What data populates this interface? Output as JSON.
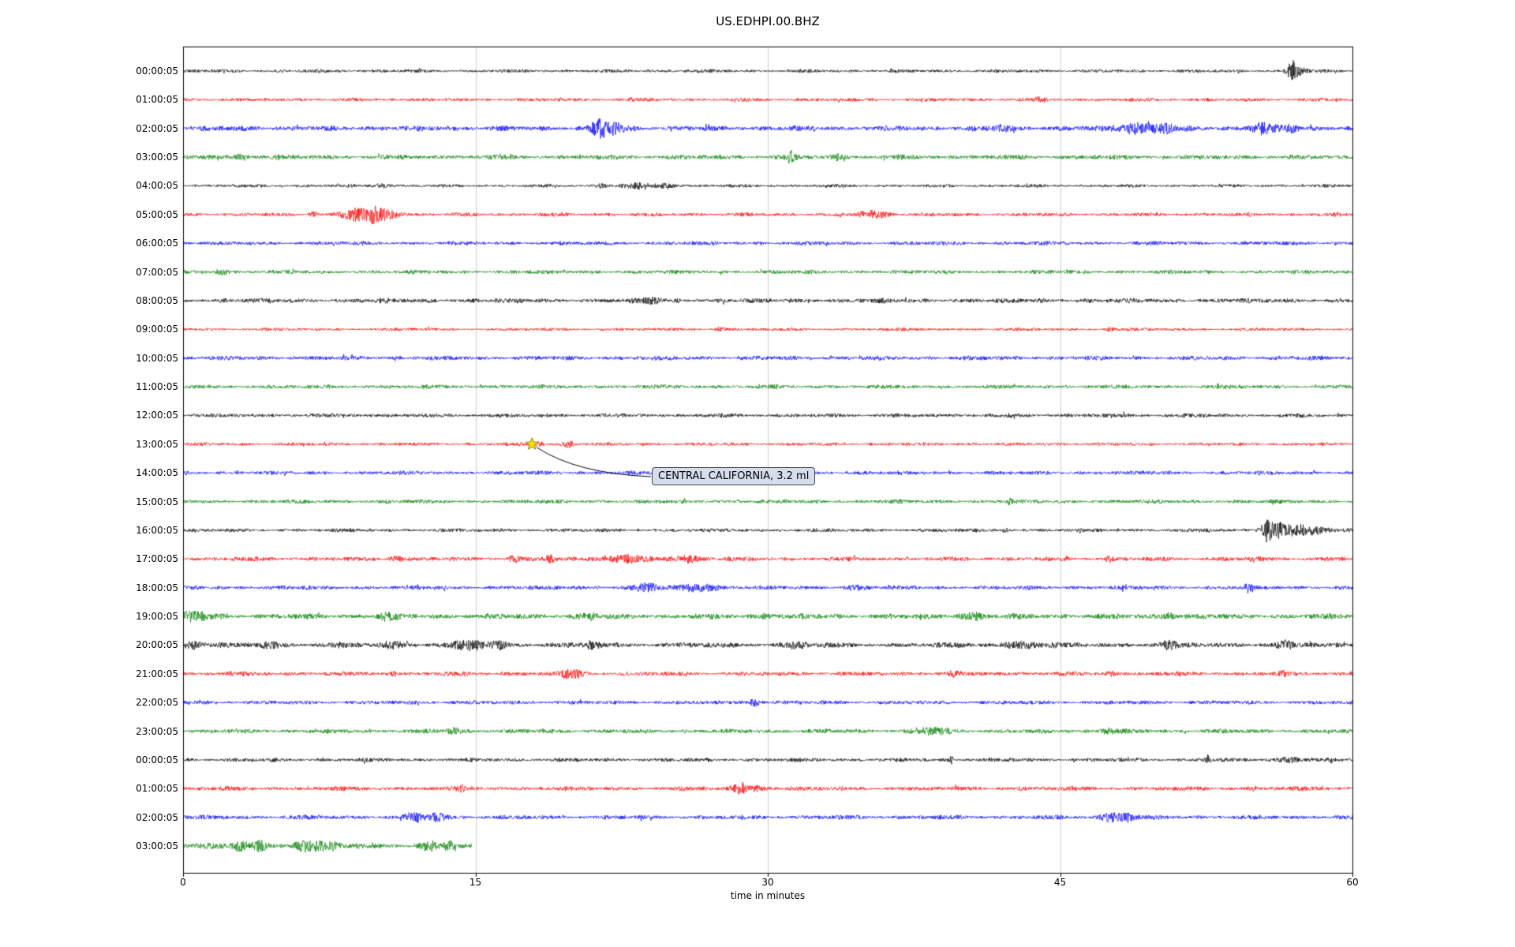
{
  "title": "US.EDHPI.00.BHZ",
  "chart_data": {
    "type": "line",
    "subtype": "seismogram-dayplot",
    "title": "US.EDHPI.00.BHZ",
    "xlabel": "time in minutes",
    "x_ticks": [
      0,
      15,
      30,
      45,
      60
    ],
    "xlim": [
      0,
      60
    ],
    "grid": true,
    "legend": "none",
    "trace_colors_cycle": [
      "#000000",
      "#ff0000",
      "#0000ff",
      "#008000"
    ],
    "annotation": {
      "text": "CENTRAL CALIFORNIA, 3.2 ml",
      "row_label": "13:00:05",
      "row_index": 13,
      "x_minutes": 17.9,
      "marker": "star",
      "marker_color": "#ffe000"
    },
    "rows": [
      {
        "label": "00:00:05",
        "color": "#000000",
        "amp": 1.6,
        "end": 60,
        "events": [
          [
            56.9,
            9,
            0.4
          ],
          [
            57.2,
            5,
            0.8
          ]
        ]
      },
      {
        "label": "01:00:05",
        "color": "#ff0000",
        "amp": 1.7,
        "end": 60,
        "events": [
          [
            44,
            2.5,
            0.6
          ]
        ]
      },
      {
        "label": "02:00:05",
        "color": "#0000ff",
        "amp": 2.6,
        "end": 60,
        "events": [
          [
            21.3,
            6,
            0.8
          ],
          [
            21.9,
            7,
            1.2
          ],
          [
            42,
            3,
            0.6
          ],
          [
            48.8,
            6,
            1.8
          ],
          [
            50.3,
            5,
            1.0
          ],
          [
            55.3,
            6,
            1.0
          ],
          [
            56.8,
            4,
            0.8
          ]
        ]
      },
      {
        "label": "03:00:05",
        "color": "#008000",
        "amp": 2.3,
        "end": 60,
        "events": [
          [
            3.0,
            3.5,
            0.8
          ],
          [
            31.2,
            6,
            0.5
          ],
          [
            33.6,
            3,
            0.5
          ]
        ]
      },
      {
        "label": "04:00:05",
        "color": "#000000",
        "amp": 1.5,
        "end": 60,
        "events": [
          [
            10.2,
            2.5,
            0.8
          ],
          [
            21.5,
            2,
            0.5
          ],
          [
            23.3,
            2.5,
            1.5
          ],
          [
            24.8,
            3,
            0.8
          ]
        ]
      },
      {
        "label": "05:00:05",
        "color": "#ff0000",
        "amp": 1.8,
        "end": 60,
        "events": [
          [
            6.7,
            3,
            0.4
          ],
          [
            8.8,
            7,
            1.2
          ],
          [
            9.8,
            9,
            0.8
          ],
          [
            10.6,
            5,
            1.0
          ],
          [
            35.2,
            5,
            0.8
          ],
          [
            36.0,
            3,
            0.8
          ]
        ]
      },
      {
        "label": "06:00:05",
        "color": "#0000ff",
        "amp": 1.9,
        "end": 60,
        "events": []
      },
      {
        "label": "07:00:05",
        "color": "#008000",
        "amp": 1.9,
        "end": 60,
        "events": [
          [
            2.0,
            3,
            0.8
          ]
        ]
      },
      {
        "label": "08:00:05",
        "color": "#000000",
        "amp": 2.3,
        "end": 60,
        "events": [
          [
            24,
            2.8,
            1.0
          ]
        ]
      },
      {
        "label": "09:00:05",
        "color": "#ff0000",
        "amp": 1.5,
        "end": 60,
        "events": [
          [
            27.6,
            2.5,
            0.4
          ],
          [
            47.6,
            2.2,
            0.4
          ]
        ]
      },
      {
        "label": "10:00:05",
        "color": "#0000ff",
        "amp": 2.1,
        "end": 60,
        "events": []
      },
      {
        "label": "11:00:05",
        "color": "#008000",
        "amp": 1.9,
        "end": 60,
        "events": []
      },
      {
        "label": "12:00:05",
        "color": "#000000",
        "amp": 1.9,
        "end": 60,
        "events": []
      },
      {
        "label": "13:00:05",
        "color": "#ff0000",
        "amp": 1.6,
        "end": 60,
        "events": [
          [
            18.3,
            2.5,
            0.4
          ],
          [
            19.7,
            4.5,
            0.5
          ]
        ]
      },
      {
        "label": "14:00:05",
        "color": "#0000ff",
        "amp": 1.9,
        "end": 60,
        "events": []
      },
      {
        "label": "15:00:05",
        "color": "#008000",
        "amp": 1.9,
        "end": 60,
        "events": [
          [
            42.4,
            3.5,
            0.25
          ]
        ]
      },
      {
        "label": "16:00:05",
        "color": "#000000",
        "amp": 1.7,
        "end": 60,
        "events": [
          [
            42.2,
            2.5,
            0.4
          ],
          [
            55.6,
            13,
            0.5
          ],
          [
            56.2,
            9,
            0.9
          ],
          [
            57.2,
            6,
            1.2
          ],
          [
            58.2,
            3.5,
            1.0
          ]
        ]
      },
      {
        "label": "17:00:05",
        "color": "#ff0000",
        "amp": 2.1,
        "end": 60,
        "events": [
          [
            11,
            2.8,
            0.8
          ],
          [
            17,
            3.5,
            0.5
          ],
          [
            18.8,
            3.5,
            0.5
          ],
          [
            22.5,
            3.5,
            2.5
          ],
          [
            26,
            3.5,
            1.5
          ],
          [
            47.6,
            2.5,
            0.5
          ],
          [
            55,
            2.5,
            0.5
          ]
        ]
      },
      {
        "label": "18:00:05",
        "color": "#0000ff",
        "amp": 2.0,
        "end": 60,
        "events": [
          [
            23.8,
            4.5,
            1.2
          ],
          [
            26.5,
            4.5,
            1.8
          ],
          [
            34.5,
            2.5,
            0.8
          ],
          [
            54.6,
            4.5,
            0.4
          ]
        ]
      },
      {
        "label": "19:00:05",
        "color": "#008000",
        "amp": 2.6,
        "end": 60,
        "events": [
          [
            0.6,
            5,
            1.2
          ],
          [
            10.5,
            3.5,
            0.8
          ],
          [
            20.8,
            3.5,
            0.8
          ],
          [
            30,
            2.5,
            0.8
          ],
          [
            40.5,
            3.5,
            1.2
          ],
          [
            50.6,
            3.5,
            0.8
          ]
        ]
      },
      {
        "label": "20:00:05",
        "color": "#000000",
        "amp": 2.6,
        "end": 60,
        "events": [
          [
            0.5,
            4,
            0.8
          ],
          [
            4.5,
            3.5,
            1.2
          ],
          [
            10.8,
            3.5,
            1.2
          ],
          [
            14.8,
            4.5,
            1.5
          ],
          [
            16.2,
            3.5,
            0.8
          ],
          [
            21,
            3.5,
            0.8
          ],
          [
            31.5,
            3.5,
            0.8
          ],
          [
            43,
            3.5,
            1.5
          ],
          [
            50.5,
            3,
            0.8
          ],
          [
            56.5,
            3,
            0.8
          ]
        ]
      },
      {
        "label": "21:00:05",
        "color": "#ff0000",
        "amp": 2.1,
        "end": 60,
        "events": [
          [
            10.8,
            6.5,
            0.15
          ],
          [
            20,
            4.5,
            1.2
          ],
          [
            39.5,
            3,
            0.4
          ],
          [
            47.6,
            3,
            0.4
          ],
          [
            56.5,
            2.8,
            0.4
          ]
        ]
      },
      {
        "label": "22:00:05",
        "color": "#0000ff",
        "amp": 1.9,
        "end": 60,
        "events": [
          [
            29.3,
            4.5,
            0.5
          ]
        ]
      },
      {
        "label": "23:00:05",
        "color": "#008000",
        "amp": 2.1,
        "end": 60,
        "events": [
          [
            13.9,
            3.5,
            0.6
          ],
          [
            38.5,
            3.5,
            1.5
          ],
          [
            47.5,
            2.8,
            0.8
          ]
        ]
      },
      {
        "label": "00:00:05",
        "color": "#000000",
        "amp": 1.9,
        "end": 60,
        "events": [
          [
            39.4,
            5.5,
            0.15
          ],
          [
            52.6,
            3.5,
            0.25
          ],
          [
            56.8,
            2.8,
            1.2
          ]
        ]
      },
      {
        "label": "01:00:05",
        "color": "#ff0000",
        "amp": 2.1,
        "end": 60,
        "events": [
          [
            14.3,
            2.8,
            0.3
          ],
          [
            28.6,
            5.5,
            0.8
          ],
          [
            29.5,
            3.5,
            0.8
          ]
        ]
      },
      {
        "label": "02:00:05",
        "color": "#0000ff",
        "amp": 2.1,
        "end": 60,
        "events": [
          [
            11.9,
            5.5,
            0.8
          ],
          [
            13.0,
            4.5,
            0.8
          ],
          [
            47.7,
            5.5,
            1.0
          ],
          [
            48.5,
            4,
            0.6
          ]
        ]
      },
      {
        "label": "03:00:05",
        "color": "#008000",
        "amp": 2.8,
        "end": 14.8,
        "events": [
          [
            2.9,
            5.5,
            0.6
          ],
          [
            3.9,
            4.5,
            0.8
          ],
          [
            6.3,
            5.5,
            1.2
          ],
          [
            7.5,
            4,
            0.8
          ],
          [
            12.6,
            3.5,
            0.8
          ],
          [
            13.6,
            4.5,
            0.5
          ]
        ]
      }
    ]
  }
}
